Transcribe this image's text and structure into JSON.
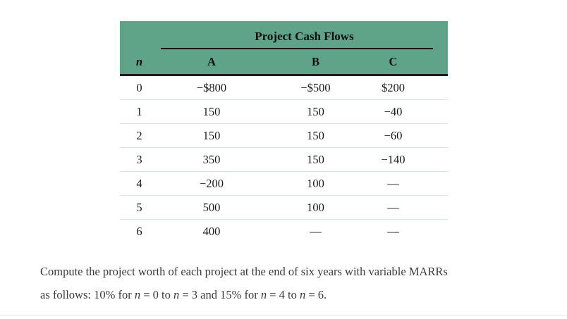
{
  "table": {
    "title": "Project Cash Flows",
    "columns": [
      "n",
      "A",
      "B",
      "C"
    ],
    "rows": [
      [
        "0",
        "−$800",
        "−$500",
        "$200"
      ],
      [
        "1",
        "150",
        "150",
        "−40"
      ],
      [
        "2",
        "150",
        "150",
        "−60"
      ],
      [
        "3",
        "350",
        "150",
        "−140"
      ],
      [
        "4",
        "−200",
        "100",
        "—"
      ],
      [
        "5",
        "500",
        "100",
        "—"
      ],
      [
        "6",
        "400",
        "—",
        "—"
      ]
    ]
  },
  "question": {
    "line1": "Compute the project worth of each project at the end of six years with variable MARRs",
    "line2_parts": [
      "as follows: 10% for ",
      "n",
      " = 0 to ",
      "n",
      " = 3 and 15% for ",
      "n",
      " = 4 to ",
      "n",
      " = 6."
    ]
  },
  "colors": {
    "header_green": "#5fa389",
    "row_divider": "#d8e6df",
    "rule_dark": "#1a1a1a"
  }
}
